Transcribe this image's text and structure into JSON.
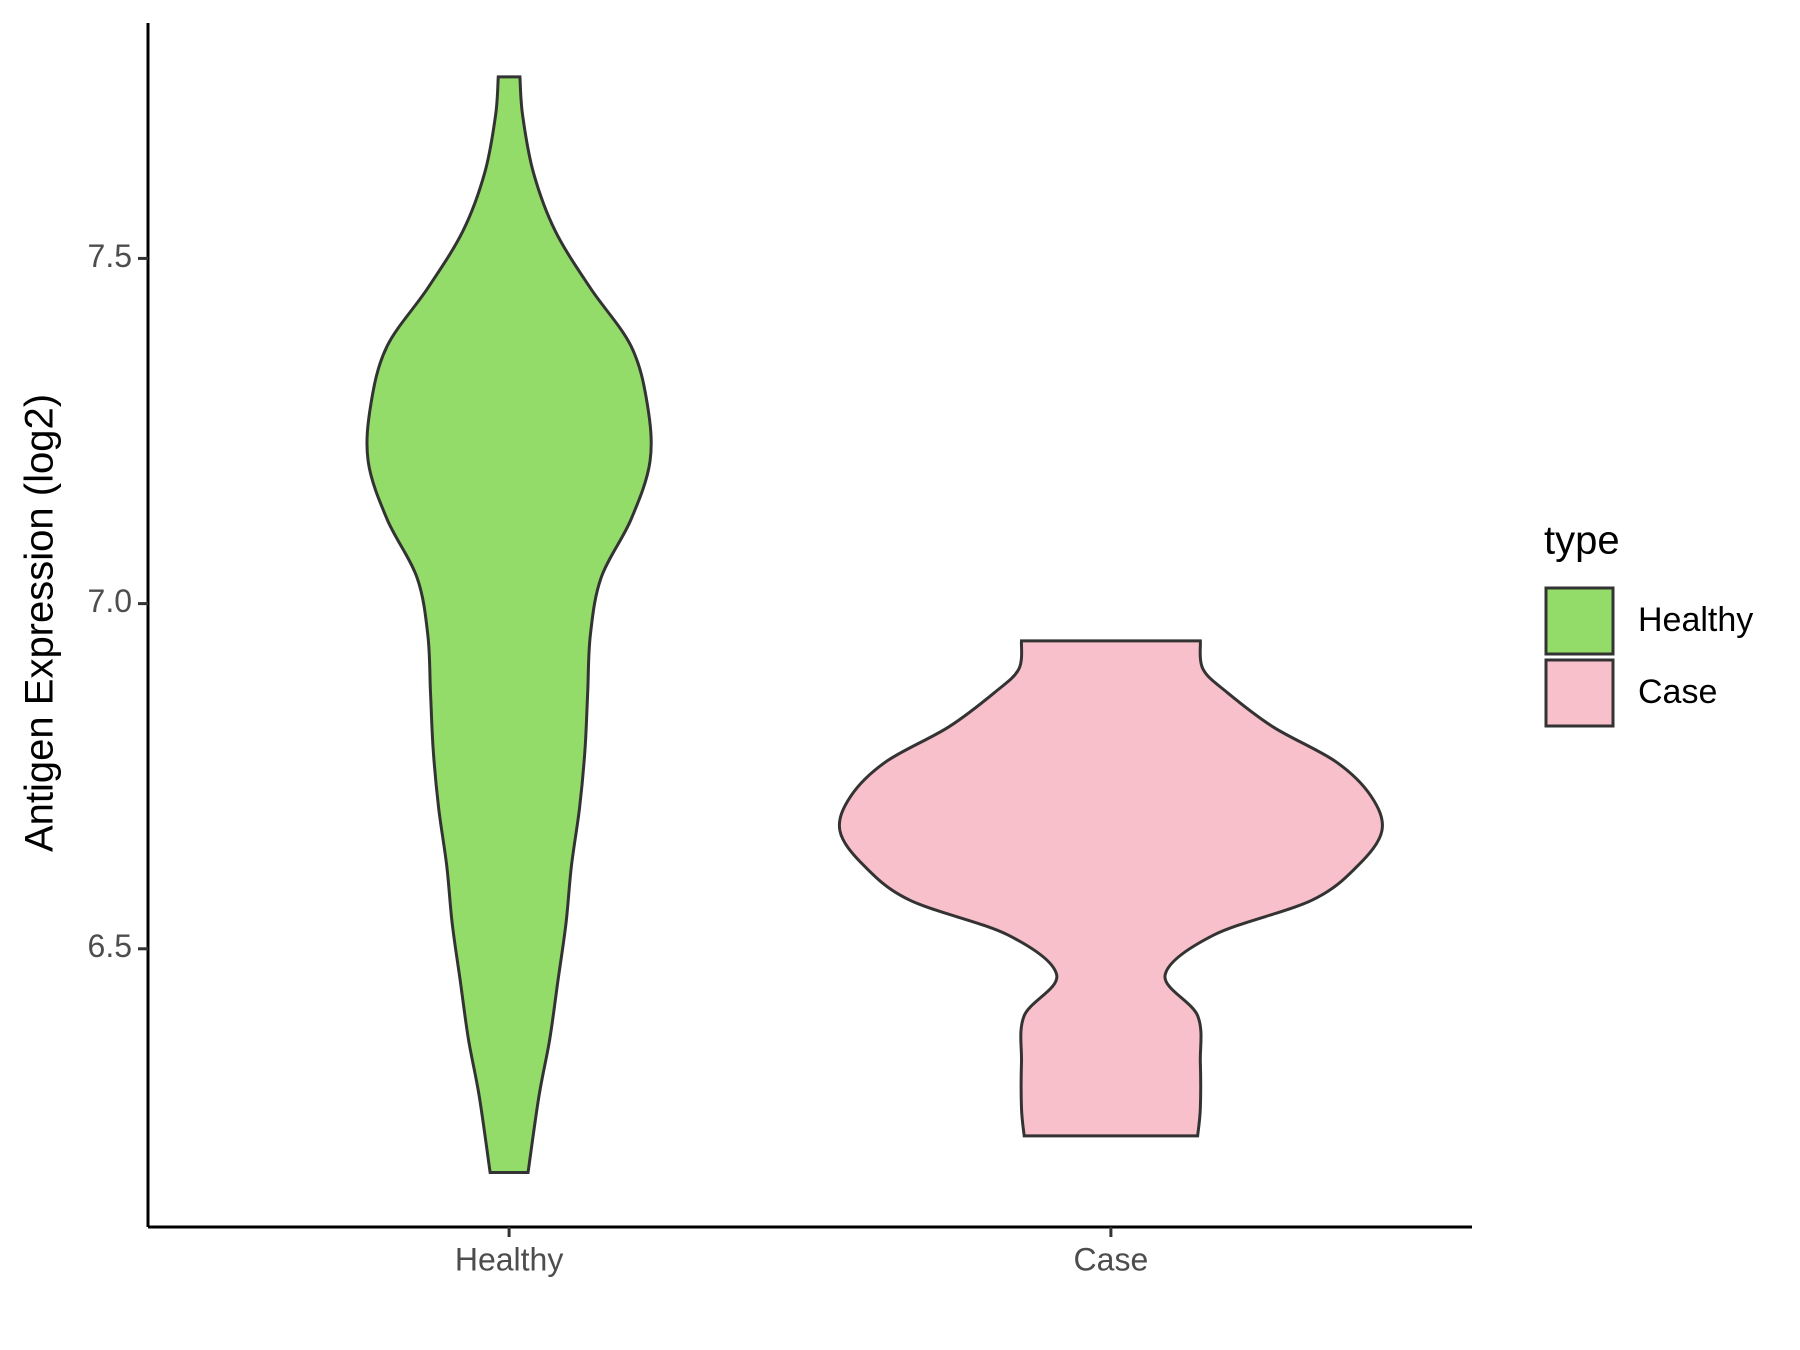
{
  "chart_data": {
    "type": "violin",
    "y_label": "Antigen Expression (log2)",
    "categories": [
      "Healthy",
      "Case"
    ],
    "series": [
      {
        "name": "Healthy",
        "color": "#94dc6a",
        "y": [
          7.763,
          7.707,
          7.624,
          7.54,
          7.457,
          7.373,
          7.289,
          7.206,
          7.122,
          7.038,
          6.955,
          6.871,
          6.788,
          6.704,
          6.62,
          6.537,
          6.453,
          6.369,
          6.286,
          6.176
        ],
        "density": [
          0.04,
          0.05,
          0.09,
          0.17,
          0.3,
          0.45,
          0.51,
          0.52,
          0.45,
          0.34,
          0.3,
          0.29,
          0.28,
          0.26,
          0.23,
          0.21,
          0.18,
          0.15,
          0.11,
          0.07
        ]
      },
      {
        "name": "Case",
        "color": "#f8c0cb",
        "y": [
          6.946,
          6.905,
          6.871,
          6.821,
          6.771,
          6.721,
          6.671,
          6.62,
          6.57,
          6.52,
          6.462,
          6.403,
          6.336,
          6.269,
          6.229
        ],
        "density": [
          0.33,
          0.34,
          0.43,
          0.6,
          0.83,
          0.96,
          1.0,
          0.91,
          0.74,
          0.38,
          0.2,
          0.32,
          0.33,
          0.33,
          0.32
        ]
      }
    ],
    "ylim": [
      6.097,
      7.841
    ],
    "yticks": [
      6.5,
      {
        "value": 7,
        "label": "7.0"
      },
      7.5
    ],
    "legend_title": "type",
    "legend": "right"
  }
}
